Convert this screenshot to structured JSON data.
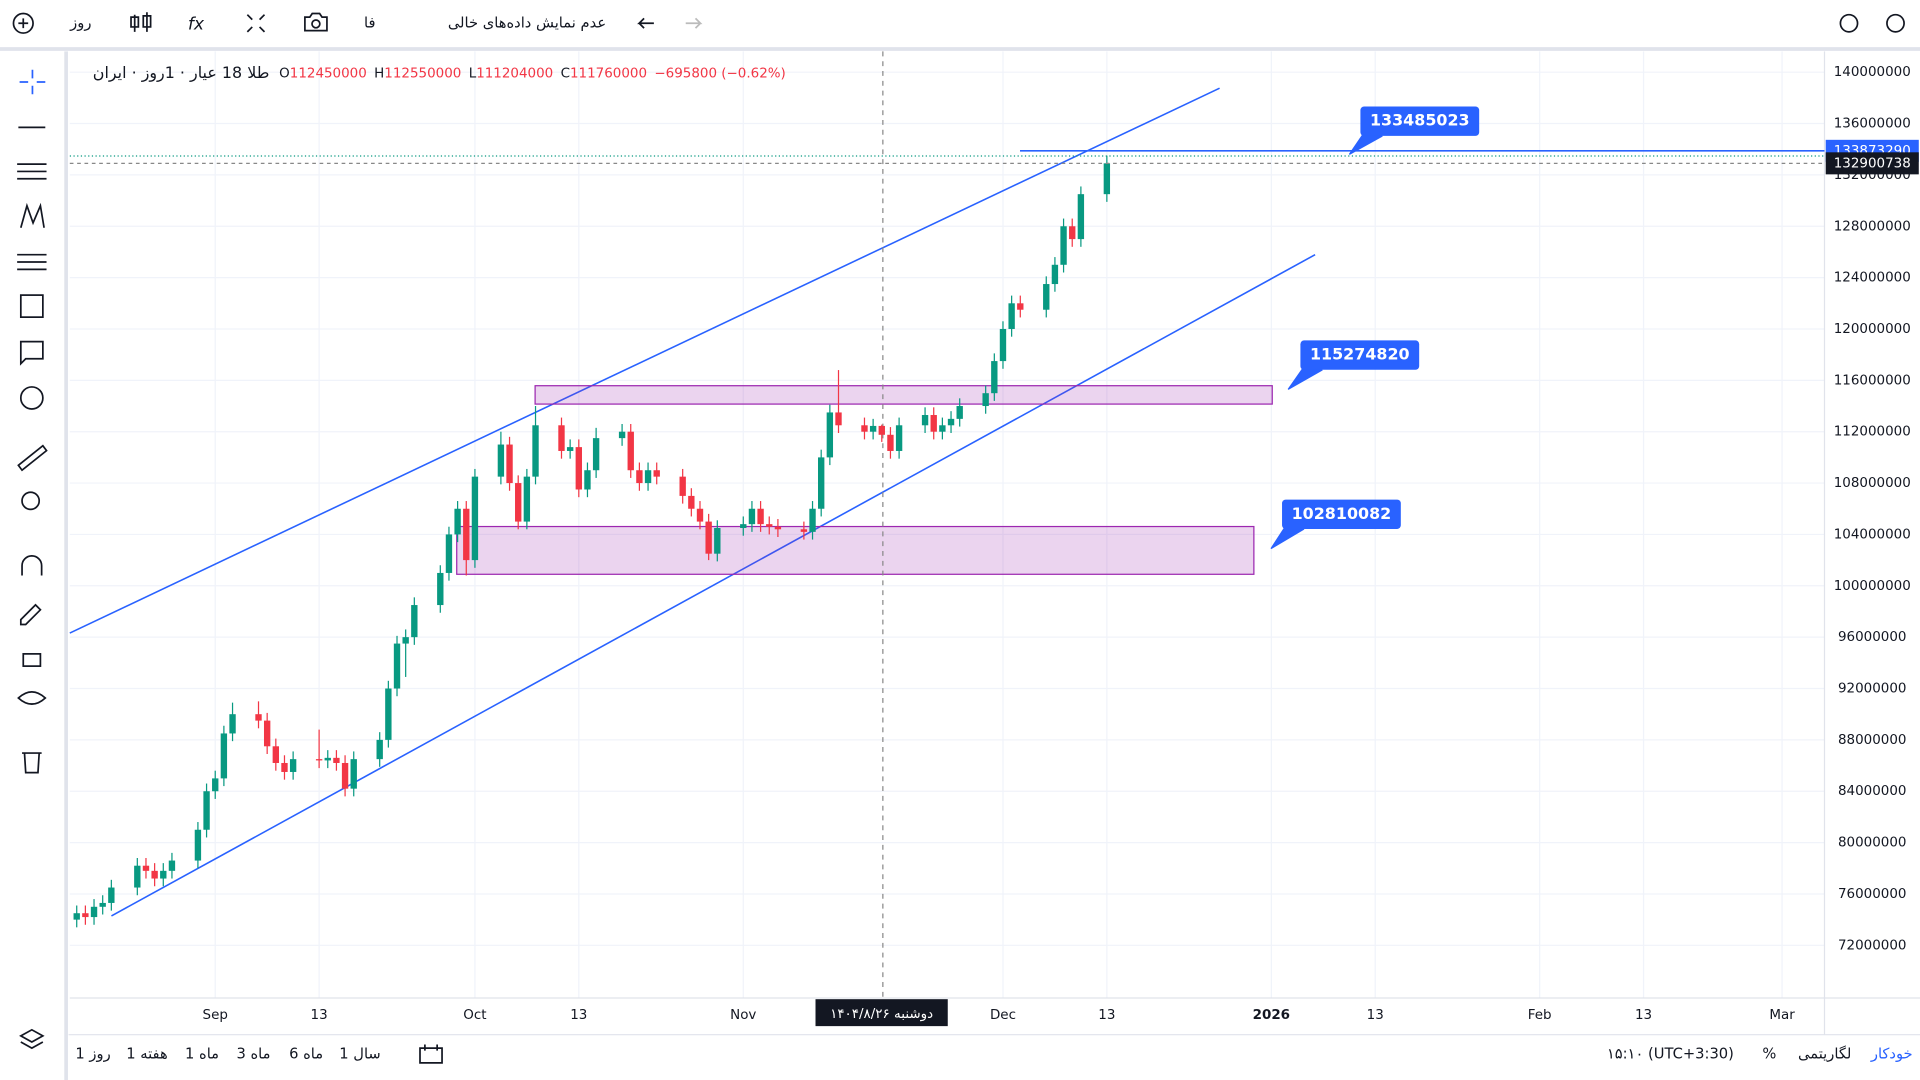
{
  "toolbar": {
    "interval": "روز",
    "lang": "فا",
    "hide_empty": "عدم نمایش داده‌های خالی"
  },
  "legend": {
    "symbol": "طلا 18 عیار · 1روز · ایران",
    "o": "O",
    "h": "H",
    "l": "L",
    "c": "C",
    "change": "−695800 (−0.62%)"
  },
  "bottom": {
    "ranges": [
      "1 روز",
      "1 هفته",
      "1 ماه",
      "3 ماه",
      "6 ماه",
      "1 سال"
    ],
    "time": "۱۵:۱۰ (UTC+3:30)",
    "percent": "%",
    "log": "لگاریتمی",
    "auto": "خودکار"
  },
  "chart_data": {
    "type": "candlestick",
    "x": [
      -16,
      -15,
      -14,
      -13,
      -12,
      -9,
      -8,
      -7,
      -6,
      -5,
      -2,
      -1,
      0,
      1,
      2,
      5,
      6,
      7,
      8,
      9,
      12,
      13,
      14,
      15,
      16,
      19,
      20,
      21,
      22,
      23,
      26,
      27,
      28,
      29,
      30,
      33,
      34,
      35,
      36,
      37,
      40,
      41,
      42,
      43,
      44,
      47,
      48,
      49,
      50,
      51,
      54,
      55,
      56,
      57,
      58,
      61,
      62,
      63,
      64,
      65,
      68,
      69,
      70,
      71,
      72,
      75,
      76,
      77,
      78,
      79,
      82,
      83,
      84,
      85,
      86,
      89,
      90,
      91,
      92,
      93,
      96,
      97,
      98,
      99,
      100,
      103
    ],
    "open": [
      74000000,
      74500000,
      74200000,
      75000000,
      75300000,
      76500000,
      78200000,
      77800000,
      77200000,
      77800000,
      78600000,
      81000000,
      84000000,
      85000000,
      88500000,
      90000000,
      89500000,
      87500000,
      86200000,
      85500000,
      86500000,
      86400000,
      86600000,
      86200000,
      84200000,
      86500000,
      88000000,
      92000000,
      95500000,
      96000000,
      98500000,
      101000000,
      104000000,
      106000000,
      102000000,
      108500000,
      111000000,
      108000000,
      105000000,
      108500000,
      112500000,
      110500000,
      110800000,
      107500000,
      109000000,
      111500000,
      112000000,
      109000000,
      108000000,
      109000000,
      108500000,
      107000000,
      106000000,
      105000000,
      102500000,
      104500000,
      104800000,
      106000000,
      104800000,
      104600000,
      104400000,
      104200000,
      106000000,
      110000000,
      113500000,
      112500000,
      112000000,
      112450000,
      111760000,
      110500000,
      112500000,
      113300000,
      112000000,
      112500000,
      113000000,
      114000000,
      115000000,
      117500000,
      120000000,
      122000000,
      121500000,
      123500000,
      125000000,
      128000000,
      127000000,
      130500000
    ],
    "high": [
      75100000,
      75100000,
      75600000,
      75900000,
      77100000,
      78800000,
      78800000,
      78400000,
      78400000,
      79200000,
      81600000,
      84600000,
      85600000,
      89100000,
      90900000,
      91000000,
      90100000,
      88100000,
      86800000,
      87100000,
      88800000,
      87200000,
      87200000,
      86800000,
      87100000,
      88600000,
      92600000,
      96100000,
      96600000,
      99100000,
      101600000,
      104600000,
      106600000,
      106600000,
      109100000,
      112000000,
      111600000,
      108600000,
      109100000,
      114000000,
      113100000,
      111400000,
      111400000,
      109600000,
      112300000,
      112600000,
      112600000,
      109600000,
      109600000,
      109600000,
      109100000,
      107600000,
      106600000,
      105600000,
      105100000,
      105400000,
      106600000,
      106600000,
      105400000,
      105200000,
      105000000,
      106600000,
      110600000,
      114100000,
      116800000,
      113100000,
      113000000,
      112550000,
      112360000,
      113100000,
      113900000,
      113900000,
      113100000,
      113600000,
      114600000,
      115600000,
      118100000,
      120600000,
      122600000,
      122600000,
      124100000,
      125600000,
      128600000,
      128600000,
      131100000,
      133500000
    ],
    "low": [
      73400000,
      73600000,
      73600000,
      74400000,
      74700000,
      75900000,
      77200000,
      76600000,
      76600000,
      77200000,
      78000000,
      80400000,
      83400000,
      84400000,
      87900000,
      88900000,
      86900000,
      85600000,
      84900000,
      84900000,
      85800000,
      85800000,
      85600000,
      83600000,
      83600000,
      85900000,
      87400000,
      91400000,
      92900000,
      95400000,
      97900000,
      100400000,
      103400000,
      100800000,
      101400000,
      107900000,
      107400000,
      104400000,
      104400000,
      107900000,
      109900000,
      109900000,
      106900000,
      106900000,
      108400000,
      110900000,
      108400000,
      107400000,
      107400000,
      107900000,
      106400000,
      105400000,
      104400000,
      102000000,
      101900000,
      103900000,
      104200000,
      104200000,
      104000000,
      103800000,
      103600000,
      103600000,
      105400000,
      109400000,
      111900000,
      111400000,
      111400000,
      111204000,
      109900000,
      109900000,
      111900000,
      111400000,
      111400000,
      111900000,
      112400000,
      113400000,
      114400000,
      116900000,
      119400000,
      120900000,
      120900000,
      122900000,
      124400000,
      126400000,
      126400000,
      129900000
    ],
    "close": [
      74500000,
      74200000,
      75000000,
      75300000,
      76500000,
      78200000,
      77800000,
      77200000,
      77800000,
      78600000,
      81000000,
      84000000,
      85000000,
      88500000,
      90000000,
      89500000,
      87500000,
      86200000,
      85500000,
      86500000,
      86400000,
      86600000,
      86200000,
      84200000,
      86500000,
      88000000,
      92000000,
      95500000,
      96000000,
      98500000,
      101000000,
      104000000,
      106000000,
      102000000,
      108500000,
      111000000,
      108000000,
      105000000,
      108500000,
      112500000,
      110500000,
      110800000,
      107500000,
      109000000,
      111500000,
      112000000,
      109000000,
      108000000,
      109000000,
      108500000,
      107000000,
      106000000,
      105000000,
      102500000,
      104500000,
      104800000,
      106000000,
      104800000,
      104600000,
      104400000,
      104200000,
      106000000,
      110000000,
      113500000,
      112500000,
      112000000,
      112450000,
      111760000,
      110500000,
      112500000,
      113300000,
      112000000,
      112500000,
      113000000,
      114000000,
      115000000,
      117500000,
      120000000,
      122000000,
      121500000,
      123500000,
      125000000,
      128000000,
      127000000,
      130500000,
      132900738
    ],
    "up_color": "#089981",
    "down_color": "#f23645",
    "xlim": [
      -16.8,
      185.9
    ],
    "xticks": [
      {
        "value": 0,
        "label": "Sep"
      },
      {
        "value": 12,
        "label": "13"
      },
      {
        "value": 30,
        "label": "Oct"
      },
      {
        "value": 42,
        "label": "13"
      },
      {
        "value": 61,
        "label": "Nov"
      },
      {
        "value": 91,
        "label": "Dec"
      },
      {
        "value": 103,
        "label": "13"
      },
      {
        "value": 122,
        "label": "2026"
      },
      {
        "value": 134,
        "label": "13"
      },
      {
        "value": 153,
        "label": "Feb"
      },
      {
        "value": 165,
        "label": "13"
      },
      {
        "value": 181,
        "label": "Mar"
      }
    ],
    "ylim": [
      67900000,
      141330000
    ],
    "yticks": [
      72000000,
      76000000,
      80000000,
      84000000,
      88000000,
      92000000,
      96000000,
      100000000,
      104000000,
      108000000,
      112000000,
      116000000,
      120000000,
      124000000,
      128000000,
      132000000,
      136000000,
      140000000
    ],
    "grid": true,
    "horizontal_line": 133873290,
    "callouts": [
      133485023,
      115274820,
      102810082
    ],
    "crosshair_label": "دوشنبه ۱۴۰۴/۸/۲۶"
  }
}
